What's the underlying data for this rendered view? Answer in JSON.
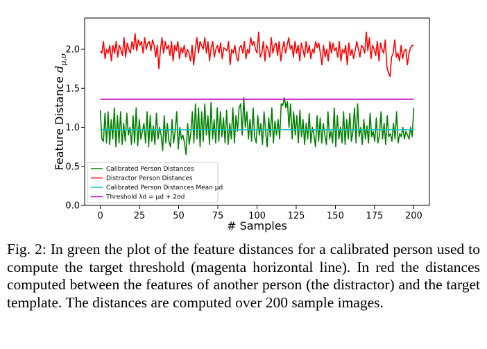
{
  "chart_data": {
    "type": "line",
    "xlabel": "# Samples",
    "ylabel": "Feature Distance dμ,σ",
    "xlim": [
      -10,
      210
    ],
    "ylim": [
      0,
      2.4
    ],
    "xticks": [
      "0",
      "25",
      "50",
      "75",
      "100",
      "125",
      "150",
      "175",
      "200"
    ],
    "yticks": [
      "0.0",
      "0.5",
      "1.0",
      "1.5",
      "2.0"
    ],
    "grid": false,
    "legend_position": "bottom-left",
    "series": [
      {
        "name": "Calibrated Person Distances",
        "color": "#008000",
        "x_start": 0,
        "x_end": 200,
        "values": [
          1.22,
          0.85,
          0.82,
          1.18,
          0.8,
          1.2,
          0.78,
          1.1,
          0.85,
          1.25,
          0.75,
          1.15,
          0.8,
          1.2,
          0.78,
          1.05,
          0.82,
          1.18,
          0.9,
          1.0,
          0.78,
          1.15,
          0.8,
          1.25,
          0.76,
          1.1,
          0.85,
          0.95,
          1.05,
          0.8,
          1.2,
          0.75,
          1.15,
          0.82,
          1.02,
          0.78,
          1.18,
          0.85,
          1.0,
          0.9,
          0.7,
          1.15,
          0.8,
          1.05,
          0.82,
          0.75,
          1.1,
          0.8,
          0.95,
          1.2,
          0.72,
          1.0,
          0.85,
          0.9,
          0.8,
          0.65,
          1.05,
          0.78,
          0.92,
          1.2,
          0.8,
          1.3,
          0.85,
          1.25,
          0.75,
          1.2,
          0.82,
          1.3,
          0.9,
          1.15,
          0.78,
          1.32,
          0.85,
          1.1,
          0.8,
          1.25,
          0.82,
          1.2,
          0.88,
          1.12,
          0.8,
          1.22,
          0.78,
          1.05,
          0.85,
          1.25,
          0.8,
          1.15,
          0.95,
          1.25,
          1.3,
          0.9,
          1.38,
          1.0,
          1.2,
          0.85,
          1.1,
          0.82,
          1.25,
          0.88,
          0.8,
          1.15,
          0.9,
          1.05,
          0.78,
          1.2,
          0.95,
          0.75,
          1.12,
          0.88,
          1.25,
          0.8,
          1.08,
          0.9,
          1.1,
          0.85,
          1.3,
          1.28,
          1.38,
          1.25,
          1.33,
          1.0,
          1.3,
          0.85,
          1.2,
          0.9,
          1.15,
          0.8,
          1.22,
          0.88,
          1.1,
          0.78,
          1.05,
          0.85,
          1.18,
          0.8,
          1.0,
          0.9,
          0.75,
          1.15,
          0.82,
          1.12,
          0.8,
          1.05,
          0.9,
          0.78,
          1.2,
          0.85,
          0.95,
          0.8,
          1.25,
          0.75,
          1.15,
          0.85,
          1.0,
          0.8,
          1.2,
          0.78,
          1.1,
          0.85,
          1.18,
          0.82,
          0.95,
          1.25,
          0.8,
          1.3,
          0.88,
          1.0,
          0.78,
          1.1,
          0.85,
          1.02,
          0.8,
          1.18,
          0.88,
          0.95,
          0.82,
          1.12,
          0.8,
          0.9,
          1.2,
          0.85,
          1.05,
          0.78,
          1.15,
          0.88,
          0.92,
          0.82,
          1.05,
          0.85,
          1.2,
          0.8,
          0.92,
          0.88,
          1.0,
          0.85,
          0.95,
          0.9,
          0.85,
          1.0,
          0.88,
          1.25
        ]
      },
      {
        "name": "Distractor Person Distances",
        "color": "#ff0000",
        "x_start": 0,
        "x_end": 200,
        "values": [
          1.98,
          1.95,
          2.1,
          1.88,
          2.0,
          1.95,
          2.05,
          1.85,
          2.05,
          1.95,
          2.1,
          1.9,
          2.05,
          2.0,
          1.92,
          2.15,
          1.9,
          2.08,
          2.0,
          1.95,
          2.1,
          2.0,
          2.2,
          1.98,
          2.12,
          2.05,
          2.1,
          1.95,
          2.15,
          2.0,
          2.08,
          2.1,
          1.98,
          2.12,
          2.05,
          1.9,
          2.05,
          1.75,
          2.0,
          2.15,
          1.95,
          2.1,
          2.0,
          2.05,
          1.92,
          2.1,
          1.85,
          2.05,
          1.98,
          2.1,
          1.88,
          2.02,
          1.95,
          2.05,
          1.9,
          2.0,
          1.95,
          1.85,
          2.05,
          1.8,
          2.0,
          2.15,
          1.95,
          2.1,
          2.05,
          2.0,
          2.15,
          1.95,
          2.1,
          1.85,
          2.02,
          2.1,
          1.9,
          2.0,
          2.05,
          1.95,
          2.08,
          1.88,
          2.02,
          2.0,
          1.98,
          2.1,
          1.8,
          2.0,
          1.95,
          2.05,
          1.9,
          1.85,
          2.02,
          2.05,
          1.95,
          2.1,
          1.88,
          2.0,
          1.95,
          2.15,
          2.05,
          2.1,
          2.0,
          1.95,
          2.22,
          1.9,
          1.95,
          2.1,
          1.85,
          2.05,
          2.0,
          1.9,
          2.15,
          1.95,
          2.05,
          2.08,
          1.92,
          2.1,
          1.85,
          2.0,
          2.1,
          1.95,
          2.05,
          2.15,
          2.0,
          2.05,
          1.9,
          2.1,
          1.95,
          2.05,
          1.85,
          2.08,
          2.0,
          1.9,
          2.1,
          1.95,
          2.05,
          1.88,
          2.0,
          1.95,
          2.1,
          2.02,
          2.08,
          1.95,
          1.8,
          2.05,
          1.9,
          2.0,
          1.85,
          2.1,
          1.95,
          2.08,
          1.98,
          2.02,
          1.9,
          2.1,
          1.85,
          2.0,
          1.95,
          2.05,
          1.8,
          2.08,
          1.92,
          2.0,
          1.88,
          1.98,
          2.1,
          2.0,
          1.9,
          2.05,
          2.02,
          1.95,
          2.22,
          1.98,
          2.15,
          1.88,
          2.05,
          2.0,
          1.92,
          2.1,
          1.85,
          2.08,
          2.0,
          1.95,
          2.12,
          1.78,
          1.7,
          1.65,
          1.9,
          1.95,
          2.12,
          1.9,
          1.95,
          1.85,
          2.05,
          1.88,
          1.98,
          2.0,
          1.8,
          1.95,
          2.02,
          2.05,
          2.05
        ]
      },
      {
        "name": "Calibrated Person Distances Mean μd",
        "color": "#00bfbf",
        "constant": 0.97
      },
      {
        "name": "Threshold λd = μd + 2σd",
        "color": "#bf00bf",
        "constant": 1.36
      }
    ]
  },
  "caption": "Fig. 2: In green the plot of the feature distances for a calibrated person used to compute the target threshold (magenta horizontal line). In red the distances computed between the features of another person (the distractor) and the target template. The distances are computed over 200 sample images."
}
